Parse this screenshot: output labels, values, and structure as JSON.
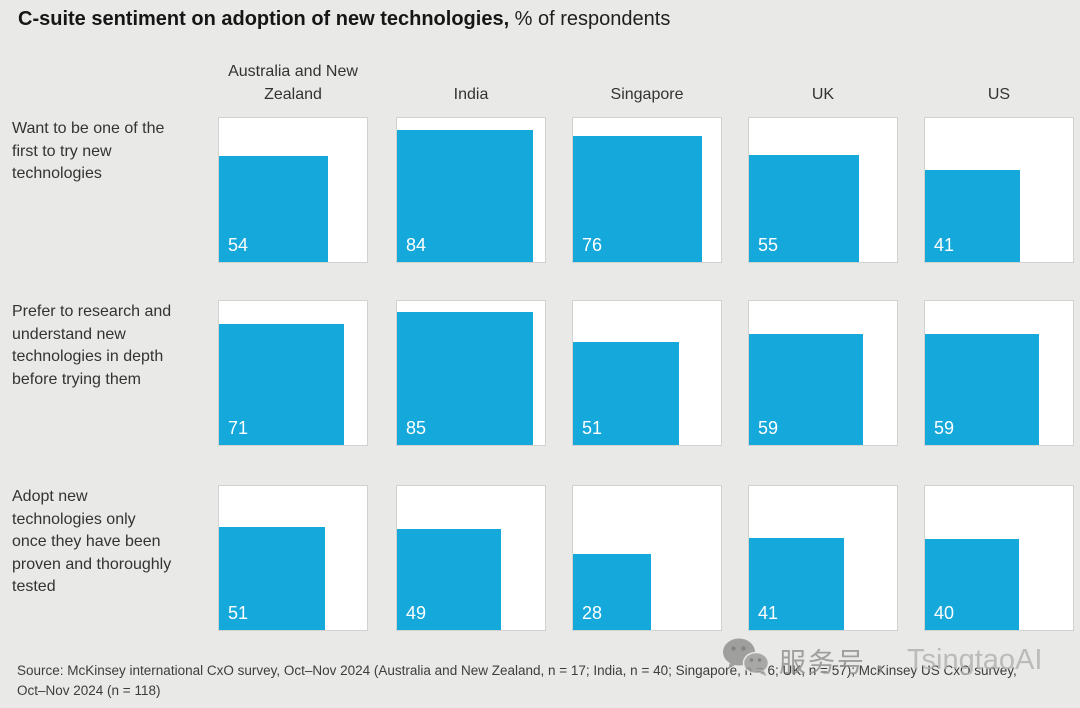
{
  "title": {
    "bold": "C-suite sentiment on adoption of new technologies,",
    "suffix": " % of respondents"
  },
  "chart_data": {
    "type": "bar",
    "layout_hint": "small-multiples grid; blue square anchored bottom-left of each white tile; square side proportional to sqrt(value/100), so area encodes the percentage; value label in white at bottom-left of square; no axes or gridlines",
    "unit": "% of respondents",
    "value_range": [
      0,
      100
    ],
    "bar_color": "#14A8DB",
    "categories": [
      "Australia and New Zealand",
      "India",
      "Singapore",
      "UK",
      "US"
    ],
    "series": [
      {
        "name": "Want to be one of the first to try new technologies",
        "values": [
          54,
          84,
          76,
          55,
          41
        ]
      },
      {
        "name": "Prefer to research and understand new technologies in depth before trying them",
        "values": [
          71,
          85,
          51,
          59,
          59
        ]
      },
      {
        "name": "Adopt new technologies only once they have been proven and thoroughly tested",
        "values": [
          51,
          49,
          28,
          41,
          40
        ]
      }
    ]
  },
  "footer": {
    "source": "Source: McKinsey international CxO survey, Oct–Nov 2024 (Australia and New Zealand, n = 17; India, n = 40; Singapore, n = 6; UK, n = 57); McKinsey US CxO survey, Oct–Nov 2024 (n = 118)"
  },
  "watermark": {
    "icon": "wechat-icon",
    "label_cn": "服务号",
    "separator": "，",
    "label_en": "TsingtaoAI"
  }
}
